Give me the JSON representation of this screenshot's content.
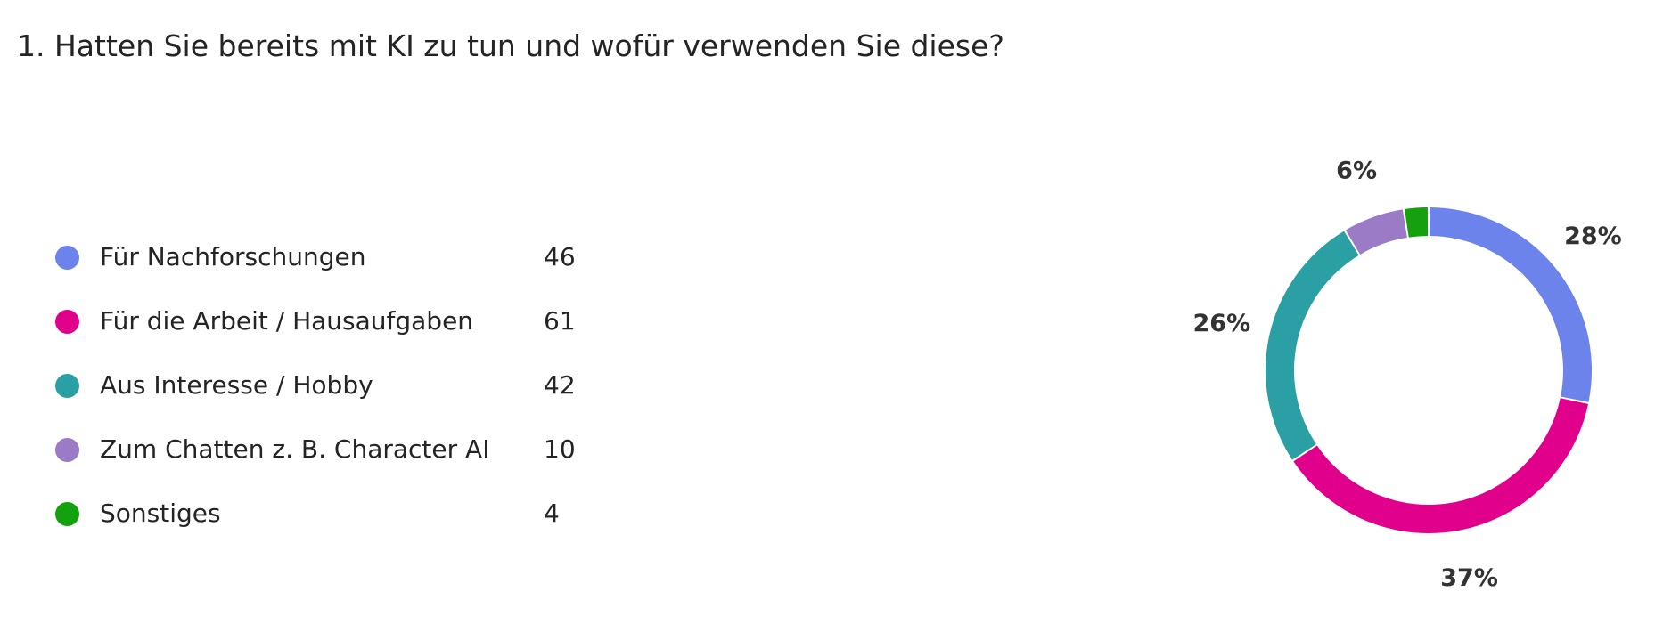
{
  "question": {
    "title": "1. Hatten Sie bereits mit KI zu tun und wofür verwenden Sie diese?"
  },
  "chart_data": {
    "type": "pie",
    "style": "donut",
    "legend_position": "left",
    "categories": [
      "Für Nachforschungen",
      "Für die Arbeit / Hausaufgaben",
      "Aus Interesse / Hobby",
      "Zum Chatten z. B. Character AI",
      "Sonstiges"
    ],
    "values": [
      46,
      61,
      42,
      10,
      4
    ],
    "percent_labels": [
      "28%",
      "37%",
      "26%",
      "6%",
      ""
    ],
    "colors": [
      "#6b83ea",
      "#e0008c",
      "#2aa0a4",
      "#9b7bc6",
      "#13a10e"
    ]
  }
}
